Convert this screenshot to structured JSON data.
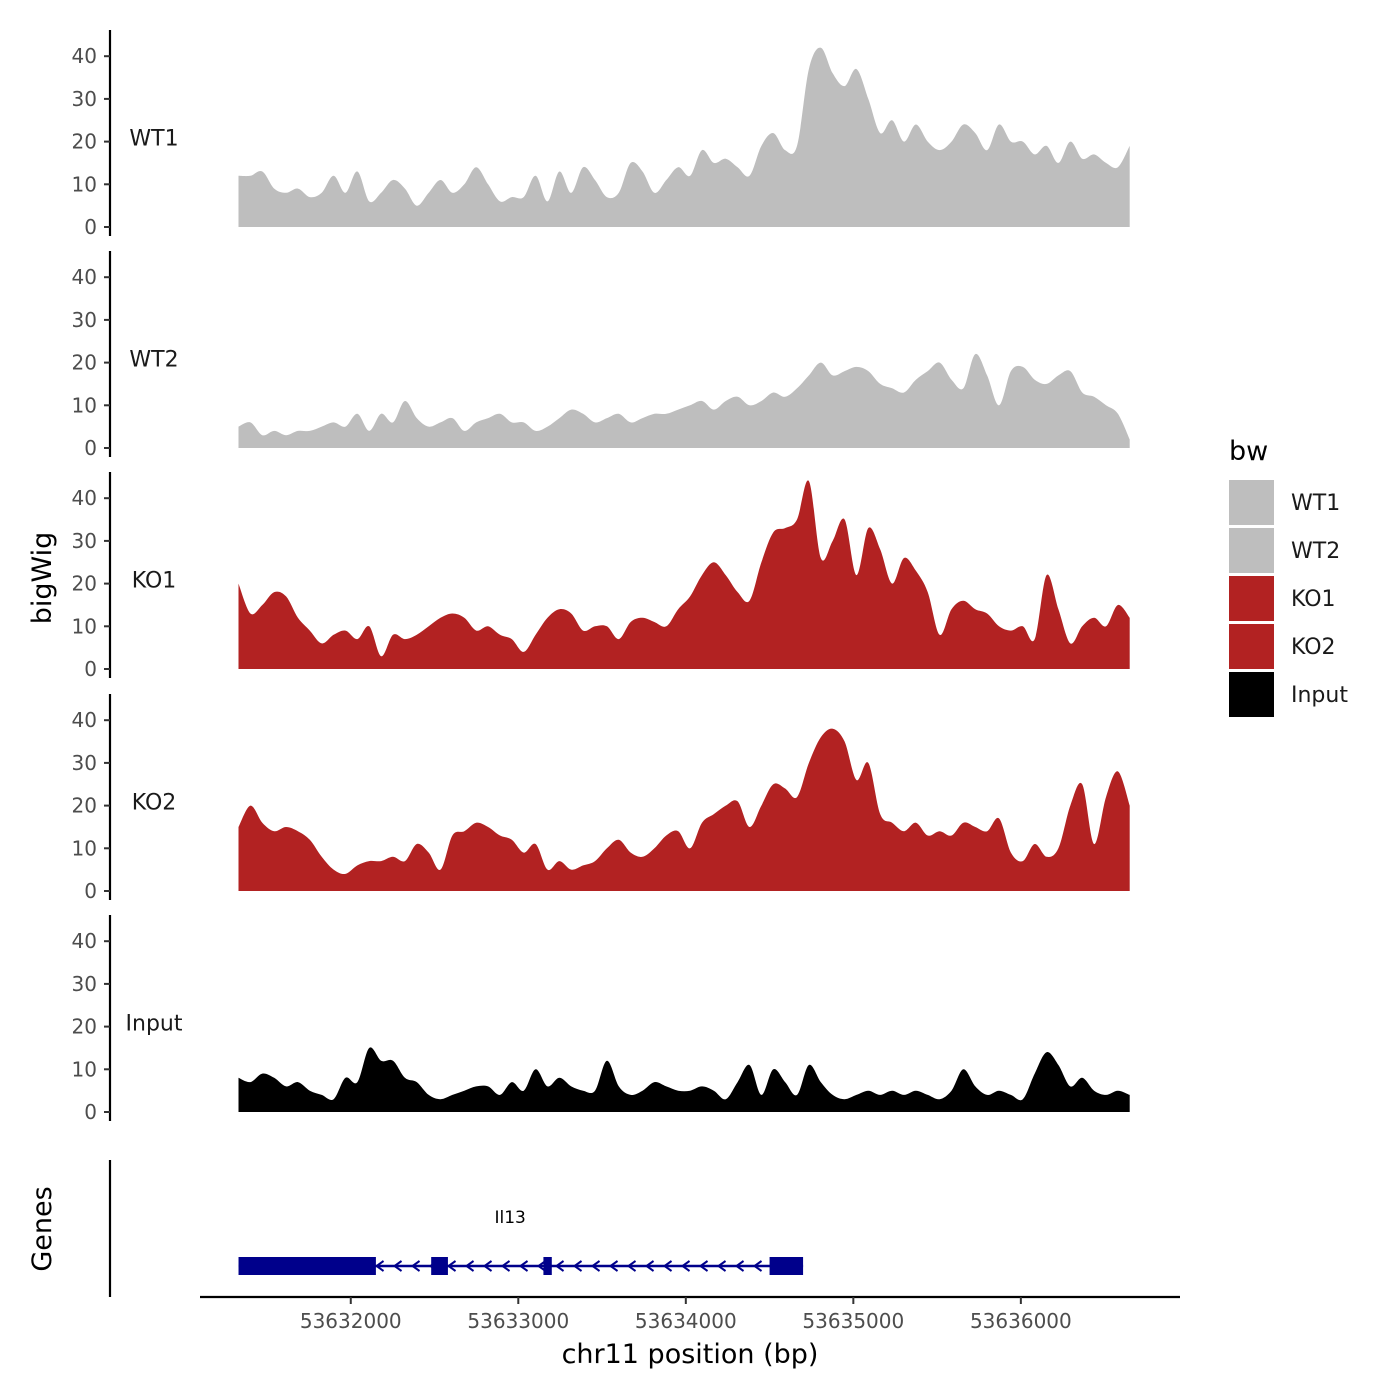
{
  "chart_data": {
    "type": "area",
    "chromosome": "chr11",
    "xlabel": "chr11 position (bp)",
    "ylabel": "bigWig",
    "genes_label": "Genes",
    "xlim": [
      53631100,
      53636950
    ],
    "x_ticks": [
      53632000,
      53633000,
      53634000,
      53635000,
      53636000
    ],
    "x_tick_labels": [
      "53632000",
      "53633000",
      "53634000",
      "53635000",
      "53636000"
    ],
    "ylim": [
      0,
      45
    ],
    "y_ticks": [
      0,
      10,
      20,
      30,
      40
    ],
    "y_tick_labels": [
      "0",
      "10",
      "20",
      "30",
      "40"
    ],
    "x_start": 53631330,
    "x_end": 53636650,
    "legend": {
      "title": "bw",
      "items": [
        {
          "label": "WT1",
          "color": "#bebebe"
        },
        {
          "label": "WT2",
          "color": "#bebebe"
        },
        {
          "label": "KO1",
          "color": "#b22222"
        },
        {
          "label": "KO2",
          "color": "#b22222"
        },
        {
          "label": "Input",
          "color": "#000000"
        }
      ]
    },
    "series": [
      {
        "name": "WT1",
        "color": "#bebebe",
        "values": [
          12,
          12,
          13,
          9,
          8,
          9,
          7,
          8,
          12,
          8,
          13,
          6,
          8,
          11,
          9,
          5,
          8,
          11,
          8,
          10,
          14,
          10,
          6,
          7,
          7,
          12,
          6,
          13,
          8,
          14,
          11,
          7,
          8,
          15,
          13,
          8,
          11,
          14,
          12,
          18,
          15,
          16,
          14,
          12,
          19,
          22,
          18,
          19,
          37,
          42,
          36,
          33,
          37,
          30,
          22,
          25,
          20,
          24,
          20,
          18,
          20,
          24,
          22,
          18,
          24,
          20,
          20,
          17,
          19,
          15,
          20,
          16,
          17,
          15,
          14,
          19
        ]
      },
      {
        "name": "WT2",
        "color": "#bebebe",
        "values": [
          5,
          6,
          3,
          4,
          3,
          4,
          4,
          5,
          6,
          5,
          8,
          4,
          8,
          6,
          11,
          7,
          5,
          6,
          7,
          4,
          6,
          7,
          8,
          6,
          6,
          4,
          5,
          7,
          9,
          8,
          6,
          7,
          8,
          6,
          7,
          8,
          8,
          9,
          10,
          11,
          9,
          11,
          12,
          10,
          11,
          13,
          12,
          14,
          17,
          20,
          17,
          18,
          19,
          18,
          15,
          14,
          13,
          16,
          18,
          20,
          16,
          14,
          22,
          17,
          10,
          18,
          19,
          16,
          15,
          17,
          18,
          13,
          12,
          10,
          8,
          2
        ]
      },
      {
        "name": "KO1",
        "color": "#b22222",
        "values": [
          20,
          13,
          15,
          18,
          17,
          12,
          9,
          6,
          8,
          9,
          7,
          10,
          3,
          8,
          7,
          8,
          10,
          12,
          13,
          12,
          9,
          10,
          8,
          7,
          4,
          8,
          12,
          14,
          13,
          9,
          10,
          10,
          7,
          11,
          12,
          11,
          10,
          14,
          17,
          22,
          25,
          22,
          18,
          16,
          25,
          32,
          33,
          35,
          44,
          26,
          30,
          35,
          22,
          33,
          28,
          20,
          26,
          23,
          18,
          8,
          14,
          16,
          14,
          13,
          10,
          9,
          10,
          7,
          22,
          14,
          6,
          10,
          12,
          10,
          15,
          12
        ]
      },
      {
        "name": "KO2",
        "color": "#b22222",
        "values": [
          15,
          20,
          16,
          14,
          15,
          14,
          12,
          8,
          5,
          4,
          6,
          7,
          7,
          8,
          7,
          11,
          9,
          5,
          13,
          14,
          16,
          15,
          13,
          12,
          9,
          11,
          5,
          7,
          5,
          6,
          7,
          10,
          12,
          9,
          8,
          10,
          13,
          14,
          10,
          16,
          18,
          20,
          21,
          15,
          20,
          25,
          24,
          22,
          30,
          36,
          38,
          35,
          26,
          30,
          18,
          16,
          14,
          16,
          13,
          14,
          13,
          16,
          15,
          14,
          17,
          9,
          7,
          11,
          8,
          10,
          20,
          25,
          11,
          22,
          28,
          20
        ]
      },
      {
        "name": "Input",
        "color": "#000000",
        "values": [
          8,
          7,
          9,
          8,
          6,
          7,
          5,
          4,
          3,
          8,
          7,
          15,
          12,
          12,
          8,
          7,
          4,
          3,
          4,
          5,
          6,
          6,
          4,
          7,
          5,
          10,
          6,
          8,
          6,
          5,
          5,
          12,
          6,
          4,
          5,
          7,
          6,
          5,
          5,
          6,
          5,
          3,
          7,
          11,
          4,
          10,
          7,
          4,
          11,
          7,
          4,
          3,
          4,
          5,
          4,
          5,
          4,
          5,
          4,
          3,
          5,
          10,
          6,
          4,
          5,
          4,
          3,
          9,
          14,
          11,
          6,
          8,
          5,
          4,
          5,
          4
        ]
      }
    ],
    "gene": {
      "name": "Il13",
      "strand": "-",
      "start": 53631330,
      "end": 53634700,
      "exons": [
        [
          53631330,
          53632150
        ],
        [
          53632480,
          53632580
        ],
        [
          53633150,
          53633200
        ],
        [
          53634500,
          53634700
        ]
      ],
      "color": "#00008b"
    }
  }
}
